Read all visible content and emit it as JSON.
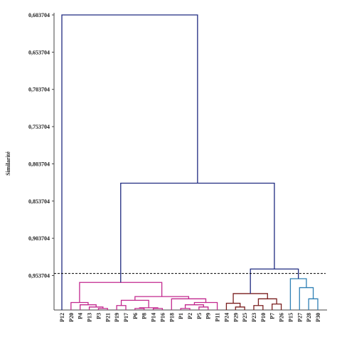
{
  "chart_data": {
    "type": "dendrogram",
    "ylabel": "Similarité",
    "ylim": [
      0.603704,
      1.0
    ],
    "yticks": [
      {
        "value": 0.603704,
        "label": "0,603704"
      },
      {
        "value": 0.653704,
        "label": "0,653704"
      },
      {
        "value": 0.703704,
        "label": "0,703704"
      },
      {
        "value": 0.753704,
        "label": "0,753704"
      },
      {
        "value": 0.803704,
        "label": "0,803704"
      },
      {
        "value": 0.853704,
        "label": "0,853704"
      },
      {
        "value": 0.903704,
        "label": "0,903704"
      },
      {
        "value": 0.953704,
        "label": "0,953704"
      }
    ],
    "threshold": 0.951,
    "leaves": [
      "P12",
      "P20",
      "P4",
      "P13",
      "P3",
      "P21",
      "P19",
      "P17",
      "P6",
      "P8",
      "P14",
      "P16",
      "P18",
      "P1",
      "P2",
      "P5",
      "P9",
      "P11",
      "P24",
      "P29",
      "P25",
      "P23",
      "P10",
      "P7",
      "P26",
      "P15",
      "P27",
      "P28",
      "P30"
    ],
    "merges": [
      {
        "children": [
          4,
          5
        ],
        "height": 0.998,
        "color": "#c2288e"
      },
      {
        "children": [
          3,
          29
        ],
        "height": 0.996,
        "color": "#c2288e"
      },
      {
        "children": [
          2,
          30
        ],
        "height": 0.993,
        "color": "#c2288e"
      },
      {
        "children": [
          1,
          31
        ],
        "height": 0.99,
        "color": "#c2288e"
      },
      {
        "children": [
          6,
          7
        ],
        "height": 0.994,
        "color": "#c2288e"
      },
      {
        "children": [
          8,
          9
        ],
        "height": 0.998,
        "color": "#c2288e"
      },
      {
        "children": [
          10,
          11
        ],
        "height": 0.998,
        "color": "#c2288e"
      },
      {
        "children": [
          34,
          35
        ],
        "height": 0.997,
        "color": "#c2288e"
      },
      {
        "children": [
          33,
          36
        ],
        "height": 0.987,
        "color": "#c2288e"
      },
      {
        "children": [
          13,
          14
        ],
        "height": 0.998,
        "color": "#c2288e"
      },
      {
        "children": [
          15,
          16
        ],
        "height": 0.996,
        "color": "#c2288e"
      },
      {
        "children": [
          38,
          39
        ],
        "height": 0.993,
        "color": "#c2288e"
      },
      {
        "children": [
          40,
          17
        ],
        "height": 0.99,
        "color": "#c2288e"
      },
      {
        "children": [
          12,
          41
        ],
        "height": 0.985,
        "color": "#c2288e"
      },
      {
        "children": [
          37,
          42
        ],
        "height": 0.982,
        "color": "#c2288e"
      },
      {
        "children": [
          32,
          43
        ],
        "height": 0.963,
        "color": "#c2288e"
      },
      {
        "children": [
          19,
          20
        ],
        "height": 0.996,
        "color": "#7a1f1f"
      },
      {
        "children": [
          18,
          45
        ],
        "height": 0.991,
        "color": "#7a1f1f"
      },
      {
        "children": [
          21,
          22
        ],
        "height": 0.994,
        "color": "#7a1f1f"
      },
      {
        "children": [
          23,
          24
        ],
        "height": 0.992,
        "color": "#7a1f1f"
      },
      {
        "children": [
          47,
          48
        ],
        "height": 0.985,
        "color": "#7a1f1f"
      },
      {
        "children": [
          46,
          49
        ],
        "height": 0.978,
        "color": "#7a1f1f"
      },
      {
        "children": [
          27,
          28
        ],
        "height": 0.985,
        "color": "#2f80b5"
      },
      {
        "children": [
          26,
          51
        ],
        "height": 0.97,
        "color": "#2f80b5"
      },
      {
        "children": [
          25,
          52
        ],
        "height": 0.958,
        "color": "#2f80b5"
      },
      {
        "children": [
          50,
          53
        ],
        "height": 0.945,
        "color": "#1f2a80"
      },
      {
        "children": [
          44,
          54
        ],
        "height": 0.8297,
        "color": "#1f2a80"
      },
      {
        "children": [
          0,
          55
        ],
        "height": 0.6037,
        "color": "#1f2a80"
      }
    ]
  }
}
